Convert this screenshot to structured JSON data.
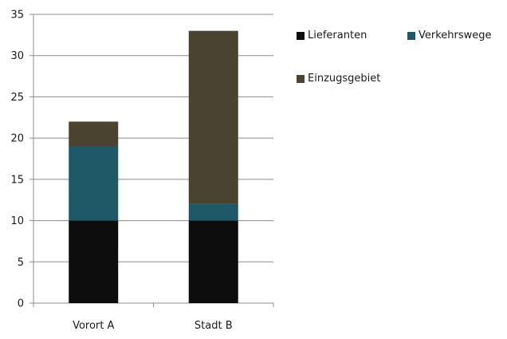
{
  "chart_data": {
    "type": "bar",
    "stacked": true,
    "categories": [
      "Vorort A",
      "Stadt B"
    ],
    "series": [
      {
        "name": "Lieferanten",
        "values": [
          10,
          10
        ],
        "color": "#0d0d0d"
      },
      {
        "name": "Verkehrswege",
        "values": [
          9,
          2
        ],
        "color": "#1f5968"
      },
      {
        "name": "Einzugsgebiet",
        "values": [
          3,
          21
        ],
        "color": "#4a4330"
      }
    ],
    "ylim": [
      0,
      35
    ],
    "yticks": [
      0,
      5,
      10,
      15,
      20,
      25,
      30,
      35
    ],
    "grid": true,
    "legend_position": "right",
    "title": "",
    "xlabel": "",
    "ylabel": ""
  }
}
